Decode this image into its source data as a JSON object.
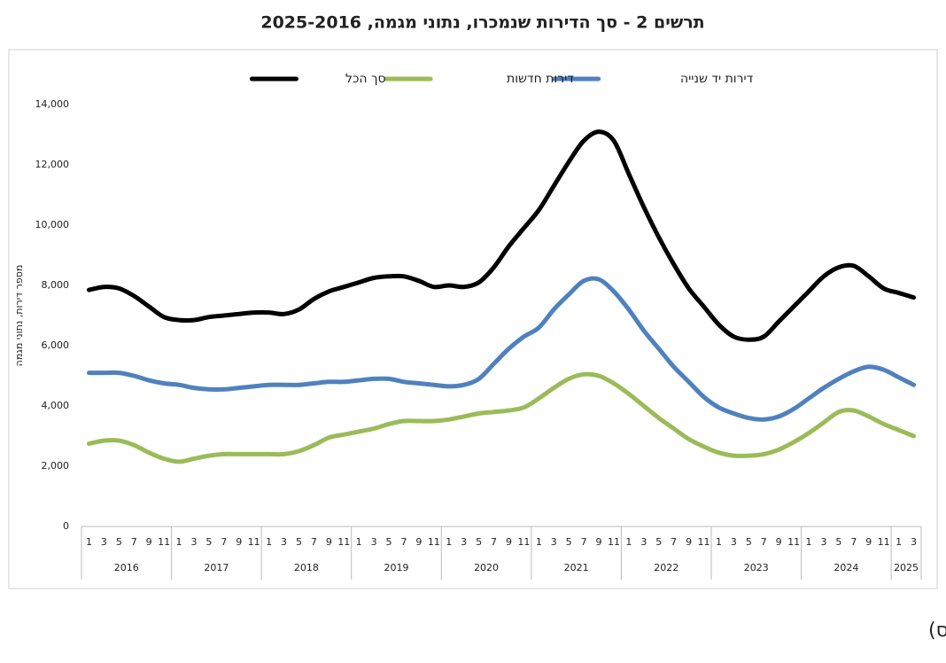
{
  "chart_data": {
    "type": "line",
    "title": "תרשים 2 - סך הדירות שנמכרו, נתוני מגמה, 2025-2016",
    "y_label": "מספר דירות, נתוני מגמה",
    "caption": "(תרשים למ\"ס)",
    "categories": [
      "1",
      "3",
      "5",
      "7",
      "9",
      "11",
      "1",
      "3",
      "5",
      "7",
      "9",
      "11",
      "1",
      "3",
      "5",
      "7",
      "9",
      "11",
      "1",
      "3",
      "5",
      "7",
      "9",
      "11",
      "1",
      "3",
      "5",
      "7",
      "9",
      "11",
      "1",
      "3",
      "5",
      "7",
      "9",
      "11",
      "1",
      "3",
      "5",
      "7",
      "9",
      "11",
      "1",
      "3",
      "5",
      "7",
      "9",
      "11",
      "1",
      "3",
      "5",
      "7",
      "9",
      "11",
      "1",
      "3"
    ],
    "years": [
      "2016",
      "2017",
      "2018",
      "2019",
      "2020",
      "2021",
      "2022",
      "2023",
      "2024",
      "2025"
    ],
    "series": [
      {
        "name": "דירות יד שנייה",
        "color": "#4f81bd",
        "values": [
          5100,
          5100,
          5100,
          5000,
          4850,
          4750,
          4700,
          4600,
          4550,
          4550,
          4600,
          4650,
          4700,
          4700,
          4700,
          4750,
          4800,
          4800,
          4850,
          4900,
          4900,
          4800,
          4750,
          4700,
          4650,
          4700,
          4900,
          5400,
          5900,
          6300,
          6600,
          7200,
          7700,
          8150,
          8200,
          7800,
          7200,
          6500,
          5900,
          5300,
          4800,
          4300,
          3950,
          3750,
          3600,
          3550,
          3650,
          3900,
          4250,
          4600,
          4900,
          5150,
          5300,
          5200,
          4950,
          4700
        ]
      },
      {
        "name": "דירות חדשות",
        "color": "#9bbb59",
        "values": [
          2750,
          2850,
          2850,
          2700,
          2450,
          2250,
          2150,
          2250,
          2350,
          2400,
          2400,
          2400,
          2400,
          2400,
          2500,
          2700,
          2950,
          3050,
          3150,
          3250,
          3400,
          3500,
          3500,
          3500,
          3550,
          3650,
          3750,
          3800,
          3850,
          3950,
          4250,
          4600,
          4900,
          5050,
          5000,
          4750,
          4400,
          4000,
          3600,
          3250,
          2900,
          2650,
          2450,
          2350,
          2350,
          2400,
          2550,
          2800,
          3100,
          3450,
          3800,
          3850,
          3650,
          3400,
          3200,
          3000
        ]
      },
      {
        "name": "סך הכל",
        "color": "#000000",
        "values": [
          7850,
          7950,
          7900,
          7650,
          7300,
          6950,
          6850,
          6850,
          6950,
          7000,
          7050,
          7100,
          7100,
          7050,
          7200,
          7550,
          7800,
          7950,
          8100,
          8250,
          8300,
          8300,
          8150,
          7950,
          8000,
          7950,
          8100,
          8600,
          9300,
          9900,
          10500,
          11300,
          12100,
          12800,
          13100,
          12800,
          11700,
          10600,
          9600,
          8700,
          7900,
          7300,
          6700,
          6300,
          6200,
          6300,
          6800,
          7300,
          7800,
          8300,
          8600,
          8650,
          8300,
          7900,
          7750,
          7600
        ]
      }
    ],
    "ylim": [
      0,
      14000
    ],
    "yticks": [
      0,
      {
        "value": 2000,
        "label": "2,000"
      },
      {
        "value": 4000,
        "label": "4,000"
      },
      {
        "value": 6000,
        "label": "6,000"
      },
      {
        "value": 8000,
        "label": "8,000"
      },
      {
        "value": 10000,
        "label": "10,000"
      },
      {
        "value": 12000,
        "label": "12,000"
      },
      {
        "value": 14000,
        "label": "14,000"
      }
    ],
    "grid": false
  }
}
